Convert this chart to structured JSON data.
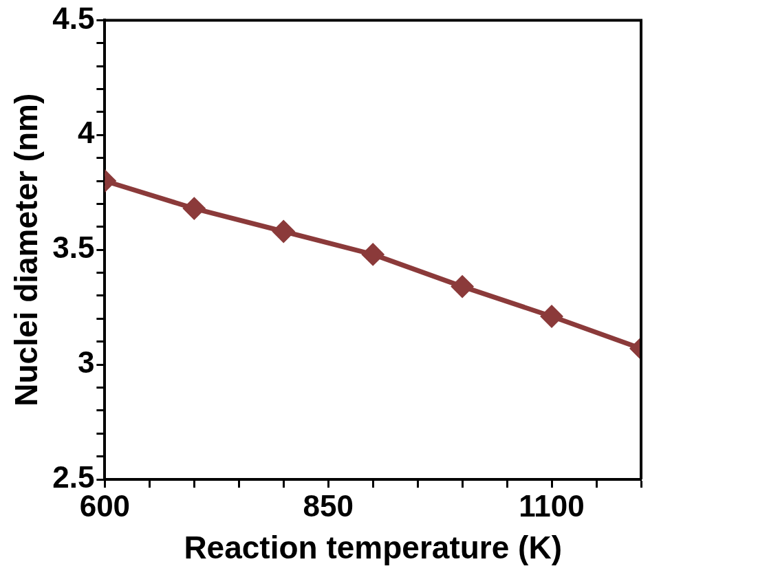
{
  "chart_data": {
    "type": "line",
    "xlabel": "Reaction temperature (K)",
    "ylabel": "Nuclei diameter (nm)",
    "x": [
      600,
      700,
      800,
      900,
      1000,
      1100,
      1200
    ],
    "series": [
      {
        "color": "#8b3a3a",
        "values": [
          3.8,
          3.68,
          3.58,
          3.48,
          3.34,
          3.21,
          3.07
        ]
      }
    ],
    "xlim": [
      600,
      1200
    ],
    "xticks": [
      600,
      {
        "value": 650,
        "label": null
      },
      {
        "value": 700,
        "label": null
      },
      {
        "value": 750,
        "label": null
      },
      {
        "value": 800,
        "label": null
      },
      850,
      {
        "value": 900,
        "label": null
      },
      {
        "value": 950,
        "label": null
      },
      {
        "value": 1000,
        "label": null
      },
      {
        "value": 1050,
        "label": null
      },
      1100,
      {
        "value": 1150,
        "label": null
      },
      {
        "value": 1200,
        "label": null
      }
    ],
    "ylim": [
      2.5,
      4.5
    ],
    "yticks": [
      2.5,
      {
        "value": 2.6,
        "label": null
      },
      {
        "value": 2.7,
        "label": null
      },
      {
        "value": 2.8,
        "label": null
      },
      {
        "value": 2.9,
        "label": null
      },
      3,
      {
        "value": 3.1,
        "label": null
      },
      {
        "value": 3.2,
        "label": null
      },
      {
        "value": 3.3,
        "label": null
      },
      {
        "value": 3.4,
        "label": null
      },
      3.5,
      {
        "value": 3.6,
        "label": null
      },
      {
        "value": 3.7,
        "label": null
      },
      {
        "value": 3.8,
        "label": null
      },
      {
        "value": 3.9,
        "label": null
      },
      4,
      {
        "value": 4.1,
        "label": null
      },
      {
        "value": 4.2,
        "label": null
      },
      {
        "value": 4.3,
        "label": null
      },
      {
        "value": 4.4,
        "label": null
      },
      4.5
    ],
    "marker": "diamond",
    "line_style": "solid",
    "grid": false,
    "legend": false
  }
}
